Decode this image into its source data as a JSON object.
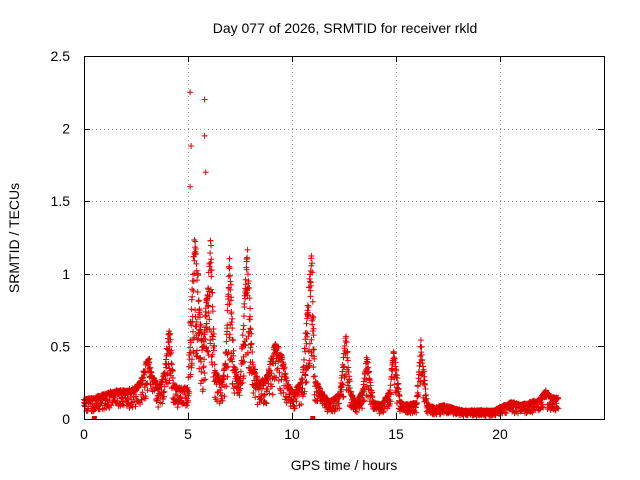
{
  "chart_data": {
    "type": "scatter",
    "title": "Day 077 of 2026, SRMTID for receiver rkld",
    "xlabel": "GPS time / hours",
    "ylabel": "SRMTID / TECUs",
    "xlim": [
      0,
      25
    ],
    "ylim": [
      0,
      2.5
    ],
    "grid": true,
    "marker": "+",
    "color": "#e00000",
    "xticks": [
      0,
      5,
      10,
      15,
      20
    ],
    "yticks": [
      0,
      0.5,
      1,
      1.5,
      2,
      2.5
    ],
    "xtick_labels": [
      "0",
      "5",
      "10",
      "15",
      "20"
    ],
    "ytick_labels": [
      "0",
      "0.5",
      "1",
      "1.5",
      "2",
      "2.5"
    ],
    "zero_markers": [
      0.5,
      11.0
    ],
    "outliers": [
      {
        "x": 5.1,
        "y": 2.25
      },
      {
        "x": 5.8,
        "y": 2.2
      },
      {
        "x": 5.8,
        "y": 1.95
      },
      {
        "x": 5.15,
        "y": 1.88
      },
      {
        "x": 5.85,
        "y": 1.7
      },
      {
        "x": 5.1,
        "y": 1.6
      }
    ],
    "series_envelope": {
      "name": "SRMTID",
      "sample_step_hours": 0.02,
      "x": [
        0.0,
        0.5,
        1.0,
        1.5,
        2.0,
        2.5,
        2.8,
        3.1,
        3.3,
        3.6,
        3.9,
        4.1,
        4.3,
        4.6,
        5.0,
        5.2,
        5.35,
        5.55,
        5.7,
        5.9,
        6.1,
        6.3,
        6.6,
        6.8,
        7.0,
        7.2,
        7.5,
        7.7,
        7.85,
        8.1,
        8.4,
        8.8,
        9.2,
        9.5,
        9.8,
        10.1,
        10.5,
        10.8,
        10.95,
        11.1,
        11.4,
        11.8,
        12.3,
        12.6,
        12.8,
        13.1,
        13.4,
        13.6,
        13.9,
        14.3,
        14.7,
        14.9,
        15.2,
        15.6,
        16.0,
        16.2,
        16.5,
        16.9,
        17.3,
        17.7,
        18.2,
        18.7,
        19.2,
        19.7,
        20.2,
        20.6,
        21.0,
        21.5,
        21.9,
        22.2,
        22.5,
        22.8
      ],
      "y": [
        0.14,
        0.15,
        0.18,
        0.2,
        0.2,
        0.22,
        0.3,
        0.45,
        0.3,
        0.22,
        0.35,
        0.7,
        0.25,
        0.22,
        0.22,
        1.0,
        1.38,
        0.8,
        0.5,
        0.9,
        1.28,
        0.35,
        0.25,
        0.4,
        1.15,
        0.4,
        0.25,
        0.8,
        1.2,
        0.4,
        0.25,
        0.3,
        0.55,
        0.45,
        0.25,
        0.18,
        0.3,
        0.9,
        1.2,
        0.3,
        0.2,
        0.12,
        0.18,
        0.6,
        0.2,
        0.12,
        0.2,
        0.45,
        0.12,
        0.1,
        0.2,
        0.5,
        0.12,
        0.1,
        0.12,
        0.55,
        0.1,
        0.08,
        0.1,
        0.08,
        0.06,
        0.06,
        0.06,
        0.06,
        0.1,
        0.12,
        0.1,
        0.12,
        0.14,
        0.2,
        0.15,
        0.15
      ]
    }
  }
}
